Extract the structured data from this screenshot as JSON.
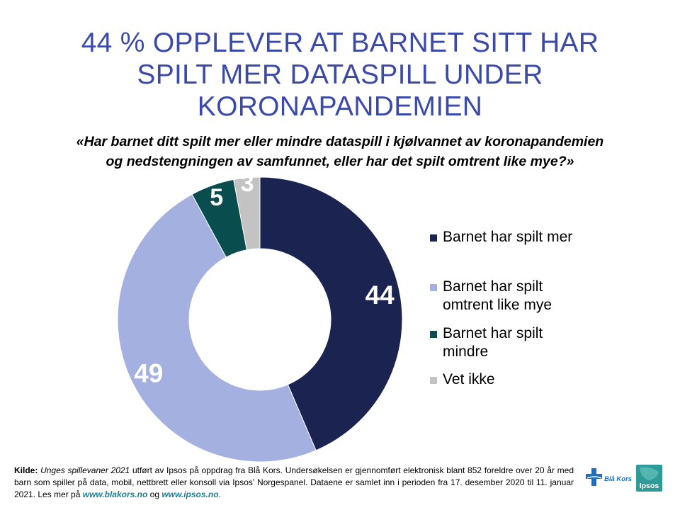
{
  "title": {
    "line1": "44 % OPPLEVER AT BARNET SITT HAR",
    "line2": "SPILT MER DATASPILL UNDER",
    "line3": "KORONAPANDEMIEN"
  },
  "question": {
    "line1": "«Har barnet ditt spilt mer eller mindre dataspill i kjølvannet av koronapandemien",
    "line2": "og nedstengningen av samfunnet, eller har det spilt omtrent like mye?»"
  },
  "chart_data": {
    "type": "pie",
    "variant": "donut",
    "title": "",
    "legend_position": "right",
    "categories": [
      "Barnet har spilt mer",
      "Barnet har spilt omtrent like mye",
      "Barnet har spilt mindre",
      "Vet ikke"
    ],
    "values": [
      44,
      49,
      5,
      3
    ],
    "data_labels": [
      "44",
      "49",
      "5",
      "3"
    ],
    "colors": [
      "#1b2350",
      "#a3b0e0",
      "#0a4d4f",
      "#c3c3c3"
    ],
    "label_colors": [
      "#ffffff",
      "#ffffff",
      "#ffffff",
      "#ffffff"
    ]
  },
  "legend": {
    "items": [
      {
        "line1": "Barnet har spilt mer",
        "line2": ""
      },
      {
        "line1": "Barnet har spilt",
        "line2": "omtrent like mye"
      },
      {
        "line1": "Barnet har spilt",
        "line2": "mindre"
      },
      {
        "line1": "Vet ikke",
        "line2": ""
      }
    ]
  },
  "footer": {
    "source_label": "Kilde:",
    "source_title": "Unges spillevaner 2021",
    "text": " utført av Ipsos på oppdrag fra Blå Kors. Undersøkelsen er gjennomført elektronisk blant 852 foreldre over 20 år med barn som spiller på data, mobil, nettbrett eller konsoll via Ipsos’ Norgespanel. Dataene er samlet inn i perioden fra 17. desember 2020 til 11. januar 2021. Les mer på ",
    "link1": "www.blakors.no",
    "and": " og ",
    "link2": "www.ipsos.no",
    "end": "."
  },
  "logos": {
    "blakors": "Blå Kors",
    "ipsos": "Ipsos",
    "blakors_color": "#1d6fc4",
    "ipsos_color": "#2e9b98"
  }
}
